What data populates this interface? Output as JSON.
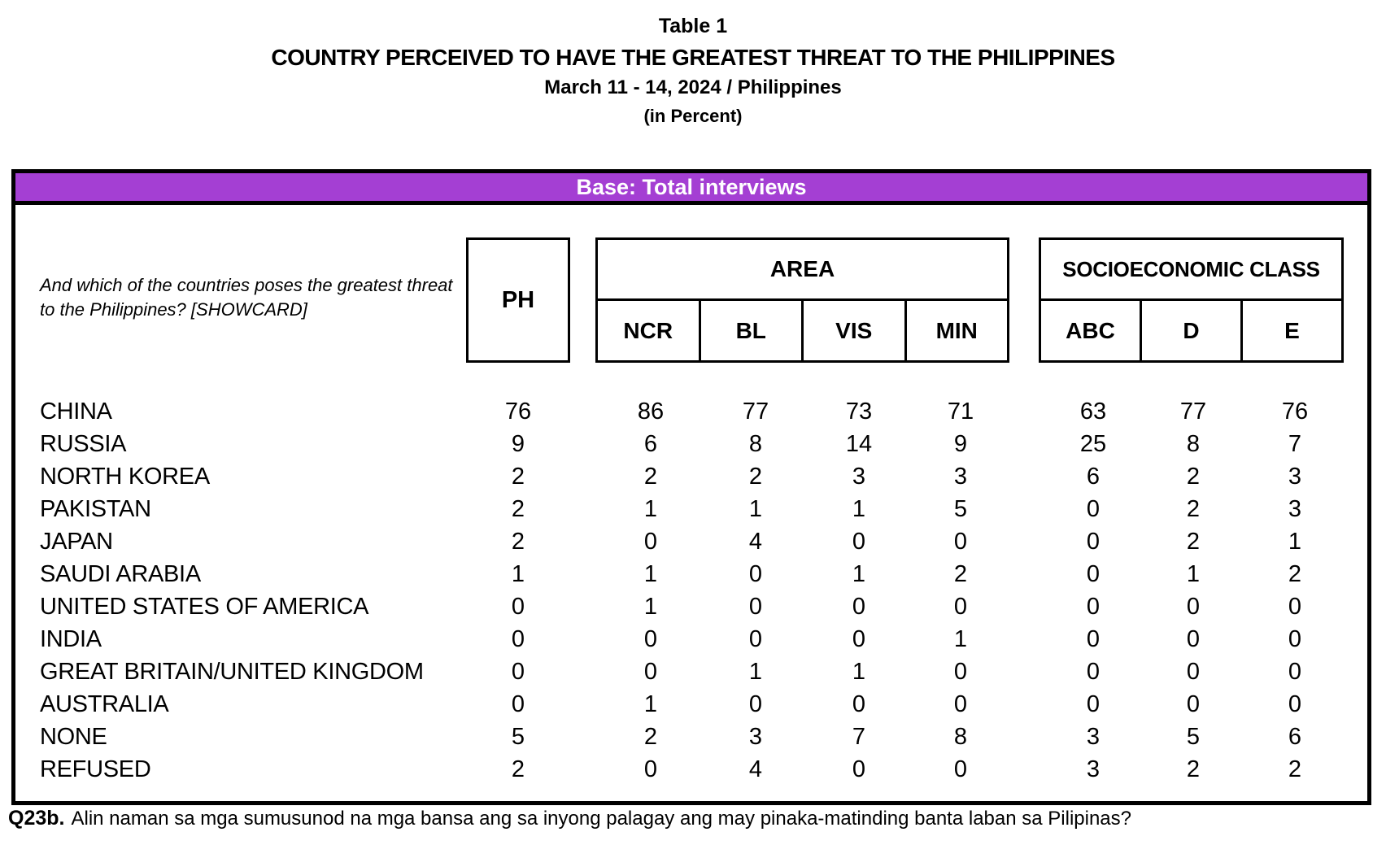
{
  "title": {
    "line1": "Table 1",
    "line2": "COUNTRY PERCEIVED TO HAVE THE GREATEST THREAT TO THE PHILIPPINES",
    "line3": "March 11 - 14, 2024 / Philippines",
    "line4": "(in Percent)"
  },
  "base_bar": "Base: Total interviews",
  "question": {
    "line1": "And which of the countries poses the greatest threat",
    "line2": "to the Philippines? [SHOWCARD]"
  },
  "columns": {
    "ph": "PH",
    "area": {
      "label": "AREA",
      "cols": [
        "NCR",
        "BL",
        "VIS",
        "MIN"
      ]
    },
    "ses": {
      "label": "SOCIOECONOMIC CLASS",
      "cols": [
        "ABC",
        "D",
        "E"
      ]
    }
  },
  "rows": [
    {
      "label": "CHINA",
      "values": [
        "76",
        "86",
        "77",
        "73",
        "71",
        "63",
        "77",
        "76"
      ]
    },
    {
      "label": "RUSSIA",
      "values": [
        "9",
        "6",
        "8",
        "14",
        "9",
        "25",
        "8",
        "7"
      ]
    },
    {
      "label": "NORTH KOREA",
      "values": [
        "2",
        "2",
        "2",
        "3",
        "3",
        "6",
        "2",
        "3"
      ]
    },
    {
      "label": "PAKISTAN",
      "values": [
        "2",
        "1",
        "1",
        "1",
        "5",
        "0",
        "2",
        "3"
      ]
    },
    {
      "label": "JAPAN",
      "values": [
        "2",
        "0",
        "4",
        "0",
        "0",
        "0",
        "2",
        "1"
      ]
    },
    {
      "label": "SAUDI ARABIA",
      "values": [
        "1",
        "1",
        "0",
        "1",
        "2",
        "0",
        "1",
        "2"
      ]
    },
    {
      "label": "UNITED STATES OF AMERICA",
      "values": [
        "0",
        "1",
        "0",
        "0",
        "0",
        "0",
        "0",
        "0"
      ]
    },
    {
      "label": "INDIA",
      "values": [
        "0",
        "0",
        "0",
        "0",
        "1",
        "0",
        "0",
        "0"
      ]
    },
    {
      "label": "GREAT BRITAIN/UNITED KINGDOM",
      "values": [
        "0",
        "0",
        "1",
        "1",
        "0",
        "0",
        "0",
        "0"
      ]
    },
    {
      "label": "AUSTRALIA",
      "values": [
        "0",
        "1",
        "0",
        "0",
        "0",
        "0",
        "0",
        "0"
      ]
    },
    {
      "label": "NONE",
      "values": [
        "5",
        "2",
        "3",
        "7",
        "8",
        "3",
        "5",
        "6"
      ]
    },
    {
      "label": "REFUSED",
      "values": [
        "2",
        "0",
        "4",
        "0",
        "0",
        "3",
        "2",
        "2"
      ]
    }
  ],
  "footnote": {
    "prefix": "Q23b.",
    "text": "Alin naman sa mga sumusunod na mga bansa ang sa inyong palagay ang may pinaka-matinding banta laban sa Pilipinas?"
  },
  "colors": {
    "base_bar_purple": "#A43FD3",
    "border_black": "#000000"
  }
}
